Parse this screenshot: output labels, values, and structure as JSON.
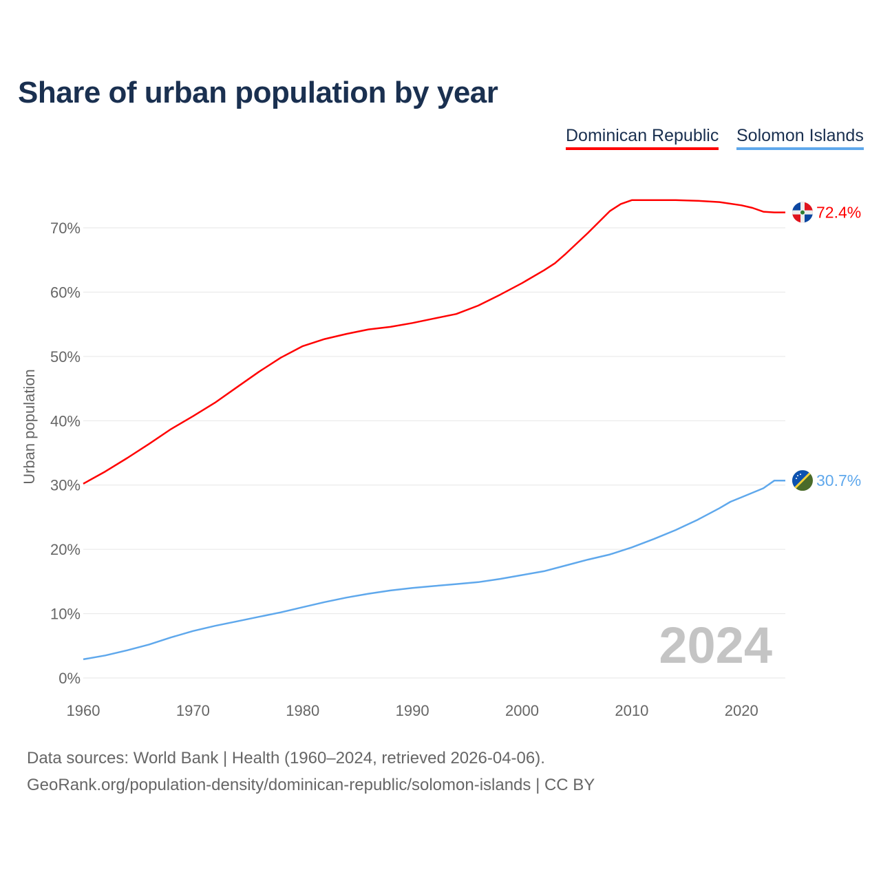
{
  "chart_data": {
    "type": "line",
    "title": "Share of urban population by year",
    "ylabel": "Urban population",
    "xlabel": "",
    "ylim": [
      0,
      75
    ],
    "xlim": [
      1960,
      2024
    ],
    "yticks": [
      "0%",
      "10%",
      "20%",
      "30%",
      "40%",
      "50%",
      "60%",
      "70%"
    ],
    "xticks": [
      "1960",
      "1970",
      "1980",
      "1990",
      "2000",
      "2010",
      "2020"
    ],
    "grid": true,
    "legend_position": "top-right",
    "year_label": "2024",
    "series": [
      {
        "name": "Dominican Republic",
        "color": "#ff0000",
        "end_label": "72.4%",
        "x": [
          1960,
          1962,
          1964,
          1966,
          1968,
          1970,
          1972,
          1974,
          1976,
          1978,
          1980,
          1982,
          1984,
          1986,
          1988,
          1990,
          1992,
          1994,
          1996,
          1998,
          2000,
          2002,
          2003,
          2004,
          2006,
          2008,
          2009,
          2010,
          2012,
          2014,
          2016,
          2018,
          2020,
          2021,
          2022,
          2023,
          2024
        ],
        "values": [
          30.2,
          32.1,
          34.2,
          36.4,
          38.7,
          40.7,
          42.8,
          45.2,
          47.6,
          49.8,
          51.6,
          52.7,
          53.5,
          54.2,
          54.6,
          55.2,
          55.9,
          56.6,
          57.9,
          59.6,
          61.4,
          63.4,
          64.5,
          66.0,
          69.2,
          72.6,
          73.7,
          74.3,
          74.3,
          74.3,
          74.2,
          74.0,
          73.5,
          73.1,
          72.5,
          72.4,
          72.4
        ]
      },
      {
        "name": "Solomon Islands",
        "color": "#5fa8ec",
        "end_label": "30.7%",
        "x": [
          1960,
          1962,
          1964,
          1966,
          1968,
          1970,
          1972,
          1974,
          1976,
          1978,
          1980,
          1982,
          1984,
          1986,
          1988,
          1990,
          1992,
          1994,
          1996,
          1998,
          2000,
          2002,
          2004,
          2006,
          2008,
          2010,
          2012,
          2014,
          2016,
          2018,
          2019,
          2020,
          2022,
          2023,
          2024
        ],
        "values": [
          2.9,
          3.5,
          4.3,
          5.2,
          6.3,
          7.3,
          8.1,
          8.8,
          9.5,
          10.2,
          11.0,
          11.8,
          12.5,
          13.1,
          13.6,
          14.0,
          14.3,
          14.6,
          14.9,
          15.4,
          16.0,
          16.6,
          17.5,
          18.4,
          19.2,
          20.3,
          21.6,
          23.0,
          24.6,
          26.4,
          27.4,
          28.1,
          29.5,
          30.7,
          30.7
        ]
      }
    ]
  },
  "footer": {
    "line1": "Data sources: World Bank | Health (1960–2024, retrieved 2026-04-06).",
    "line2": "GeoRank.org/population-density/dominican-republic/solomon-islands | CC BY"
  }
}
